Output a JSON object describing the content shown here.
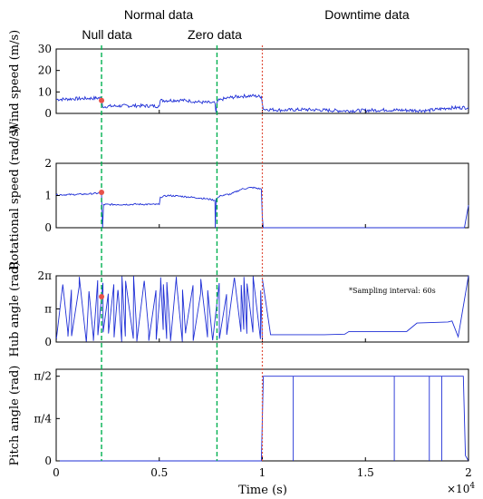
{
  "header": {
    "normal": "Normal data",
    "downtime": "Downtime data",
    "null": "Null data",
    "zero": "Zero data"
  },
  "annotation": "*Sampling interval: 60s",
  "x_exponent_base": "×10",
  "x_exponent_power": "4",
  "colors": {
    "series": "#1f2fd6",
    "boundary_green": "#00b050",
    "boundary_red": "#e0523f",
    "marker": "#e8524a"
  },
  "chart_data": [
    {
      "type": "line",
      "ylabel": "Wind speed (m/s)",
      "ylim": [
        0,
        30
      ],
      "yticks": [
        0,
        10,
        20,
        30
      ],
      "ytick_labels": [
        "0",
        "10",
        "20",
        "30"
      ],
      "xlim": [
        0,
        20000
      ],
      "x": [
        0,
        800,
        1600,
        2200,
        2250,
        3000,
        4000,
        5000,
        5050,
        6000,
        6500,
        7000,
        7500,
        7700,
        7750,
        7800,
        8000,
        8500,
        9000,
        9500,
        9950,
        10050,
        11000,
        12000,
        14000,
        16000,
        18000,
        19000,
        20000
      ],
      "y": [
        6.5,
        6.8,
        7.0,
        7.2,
        3.2,
        3.5,
        3.6,
        3.4,
        6.0,
        6.2,
        5.8,
        5.2,
        5.0,
        4.8,
        0.5,
        5.5,
        6.5,
        7.5,
        8.0,
        8.2,
        7.8,
        2.0,
        1.5,
        1.8,
        1.2,
        1.6,
        1.3,
        2.5,
        2.8
      ],
      "marker": {
        "x": 2200,
        "y": 6.0
      },
      "grid": false
    },
    {
      "type": "line",
      "ylabel": "Rotational speed (rad/s)",
      "ylim": [
        0,
        2
      ],
      "yticks": [
        0,
        1,
        2
      ],
      "ytick_labels": [
        "0",
        "1",
        "2"
      ],
      "xlim": [
        0,
        20000
      ],
      "x": [
        0,
        800,
        1600,
        2200,
        2250,
        2300,
        3000,
        4000,
        5000,
        5050,
        5400,
        6000,
        7000,
        7500,
        7700,
        7720,
        7760,
        8000,
        8500,
        9000,
        9500,
        9950,
        10000,
        10050,
        11000,
        15000,
        19800,
        20000
      ],
      "y": [
        1.02,
        1.03,
        1.05,
        1.08,
        0.0,
        0.72,
        0.72,
        0.73,
        0.72,
        0.95,
        1.0,
        0.98,
        0.92,
        0.88,
        0.85,
        0.0,
        0.9,
        1.0,
        1.05,
        1.2,
        1.25,
        1.2,
        0.3,
        0.0,
        0.0,
        0.0,
        0.0,
        0.7
      ],
      "marker": {
        "x": 2200,
        "y": 1.1
      },
      "grid": false
    },
    {
      "type": "line",
      "ylabel": "Hub angle (rad)",
      "ylim": [
        0,
        6.2832
      ],
      "ytick_labels": [
        "0",
        "π",
        "2π"
      ],
      "xlim": [
        0,
        20000
      ],
      "hub_normal_segment": [
        0,
        10000
      ],
      "x": [
        10000,
        10400,
        13000,
        14000,
        14200,
        17000,
        17500,
        19000,
        19200,
        19500,
        20000
      ],
      "y": [
        6.0,
        0.7,
        0.7,
        0.75,
        1.0,
        1.0,
        1.8,
        1.9,
        2.0,
        0.5,
        6.3
      ],
      "marker": {
        "x": 2200,
        "y": 4.3
      },
      "grid": false
    },
    {
      "type": "line",
      "ylabel": "Pitch angle (rad)",
      "ylim": [
        0,
        1.7
      ],
      "ytick_labels": [
        "0",
        "π/4",
        "π/2"
      ],
      "xlim": [
        0,
        20000
      ],
      "xticks": [
        0,
        5000,
        10000,
        15000,
        20000
      ],
      "xtick_labels": [
        "0",
        "0.5",
        "1",
        "1.5",
        "2"
      ],
      "xlabel": "Time (s)",
      "x": [
        0,
        9950,
        10050,
        19750,
        19850,
        20000
      ],
      "y": [
        0,
        0,
        1.5708,
        1.5708,
        0.1,
        0
      ],
      "dips_at_x": [
        11500,
        16400,
        18100,
        18700
      ],
      "grid": false
    }
  ]
}
